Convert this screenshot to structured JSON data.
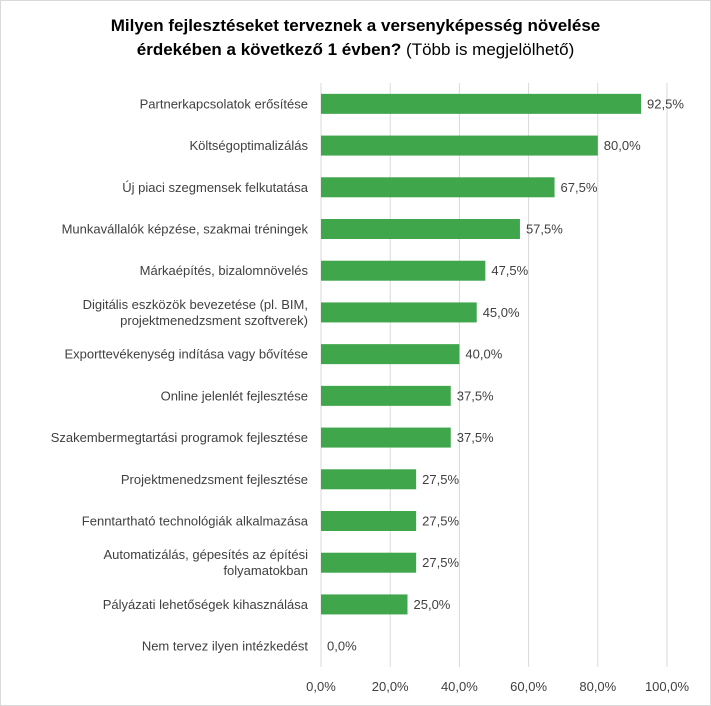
{
  "chart_data": {
    "type": "bar",
    "orientation": "horizontal",
    "title_line1": "Milyen fejlesztéseket terveznek a versenyképesség növelése",
    "title_line2_bold": "érdekében a következő 1 évben?",
    "title_line2_light": "(Több is megjelölhető)",
    "categories": [
      "Partnerkapcsolatok erősítése",
      "Költségoptimalizálás",
      "Új piaci szegmensek felkutatása",
      "Munkavállalók képzése, szakmai tréningek",
      "Márkaépítés, bizalomnövelés",
      "Digitális eszközök bevezetése (pl. BIM, projektmenedzsment szoftverek)",
      "Exporttevékenység indítása vagy bővítése",
      "Online jelenlét fejlesztése",
      "Szakembermegtartási programok fejlesztése",
      "Projektmenedzsment fejlesztése",
      "Fenntartható technológiák alkalmazása",
      "Automatizálás, gépesítés az építési folyamatokban",
      "Pályázati lehetőségek kihasználása",
      "Nem tervez ilyen intézkedést"
    ],
    "category_lines": [
      [
        "Partnerkapcsolatok erősítése"
      ],
      [
        "Költségoptimalizálás"
      ],
      [
        "Új piaci szegmensek felkutatása"
      ],
      [
        "Munkavállalók képzése, szakmai tréningek"
      ],
      [
        "Márkaépítés, bizalomnövelés"
      ],
      [
        "Digitális eszközök bevezetése (pl. BIM,",
        "projektmenedzsment szoftverek)"
      ],
      [
        "Exporttevékenység indítása vagy bővítése"
      ],
      [
        "Online jelenlét fejlesztése"
      ],
      [
        "Szakembermegtartási programok fejlesztése"
      ],
      [
        "Projektmenedzsment fejlesztése"
      ],
      [
        "Fenntartható technológiák alkalmazása"
      ],
      [
        "Automatizálás, gépesítés az építési",
        "folyamatokban"
      ],
      [
        "Pályázati lehetőségek kihasználása"
      ],
      [
        "Nem tervez ilyen intézkedést"
      ]
    ],
    "values": [
      92.5,
      80.0,
      67.5,
      57.5,
      47.5,
      45.0,
      40.0,
      37.5,
      37.5,
      27.5,
      27.5,
      27.5,
      25.0,
      0.0
    ],
    "value_labels": [
      "92,5%",
      "80,0%",
      "67,5%",
      "57,5%",
      "47,5%",
      "45,0%",
      "40,0%",
      "37,5%",
      "37,5%",
      "27,5%",
      "27,5%",
      "27,5%",
      "25,0%",
      "0,0%"
    ],
    "xlim": [
      0,
      100
    ],
    "x_ticks": [
      0,
      20,
      40,
      60,
      80,
      100
    ],
    "x_tick_labels": [
      "0,0%",
      "20,0%",
      "40,0%",
      "60,0%",
      "80,0%",
      "100,0%"
    ],
    "grid": "vertical",
    "bar_color": "#3fa64b",
    "grid_color": "#d9d9d9"
  }
}
